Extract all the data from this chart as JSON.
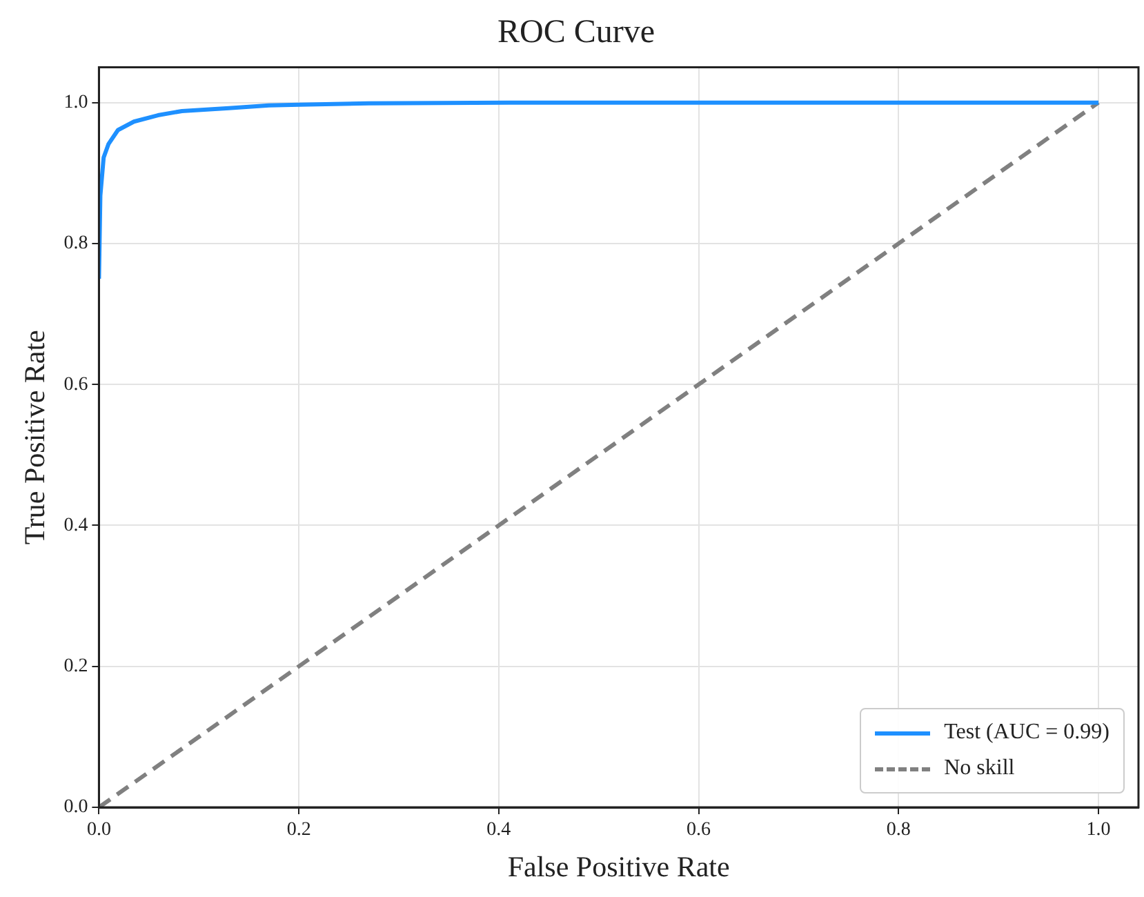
{
  "chart_data": {
    "type": "line",
    "title": "ROC Curve",
    "xlabel": "False Positive Rate",
    "ylabel": "True Positive Rate",
    "xlim": [
      0,
      1.04
    ],
    "ylim": [
      0,
      1.05
    ],
    "xticks": [
      {
        "value": 0,
        "label": "0.0"
      },
      {
        "value": 0.2,
        "label": "0.2"
      },
      {
        "value": 0.4,
        "label": "0.4"
      },
      {
        "value": 0.6,
        "label": "0.6"
      },
      {
        "value": 0.8,
        "label": "0.8"
      },
      {
        "value": 1,
        "label": "1.0"
      }
    ],
    "yticks": [
      {
        "value": 0,
        "label": "0.0"
      },
      {
        "value": 0.2,
        "label": "0.2"
      },
      {
        "value": 0.4,
        "label": "0.4"
      },
      {
        "value": 0.6,
        "label": "0.6"
      },
      {
        "value": 0.8,
        "label": "0.8"
      },
      {
        "value": 1,
        "label": "1.0"
      }
    ],
    "grid": true,
    "legend": "bottom right",
    "marker": "none",
    "series": [
      {
        "name": "Test (AUC = 0.99)",
        "color": "#1e90ff",
        "line_style": "solid",
        "x": [
          0,
          0.0014,
          0.0047,
          0.0095,
          0.019,
          0.035,
          0.059,
          0.083,
          0.13,
          0.17,
          0.2,
          0.27,
          0.41,
          1
        ],
        "values": [
          0.75,
          0.868,
          0.922,
          0.941,
          0.961,
          0.973,
          0.982,
          0.988,
          0.992,
          0.996,
          0.997,
          0.999,
          1,
          1
        ]
      },
      {
        "name": "No skill",
        "color": "#808080",
        "line_style": "dashed",
        "x": [
          0,
          1
        ],
        "values": [
          0,
          1
        ]
      }
    ]
  }
}
